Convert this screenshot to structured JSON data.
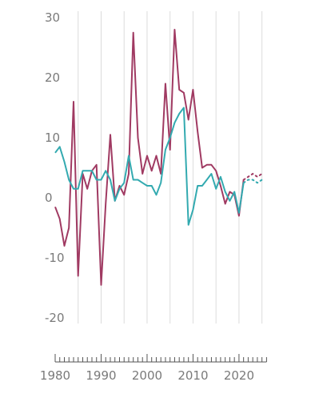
{
  "chart_data": {
    "type": "line",
    "title": "",
    "xlabel": "",
    "ylabel": "",
    "xlim": [
      1978,
      2027
    ],
    "ylim": [
      -20,
      30
    ],
    "y_ticks": [
      30,
      20,
      10,
      0,
      -10,
      -20
    ],
    "x_ticks": [
      1980,
      1990,
      2000,
      2010,
      2020
    ],
    "x_tick_labels": [
      "1980",
      "1990",
      "2000",
      "2010",
      "2020"
    ],
    "grid": "vertical",
    "legend": "none",
    "series": [
      {
        "color": "#a03a62",
        "dashed_from": 2021,
        "points": [
          [
            1980,
            -1.5
          ],
          [
            1981,
            -3.5
          ],
          [
            1982,
            -8
          ],
          [
            1983,
            -5
          ],
          [
            1984,
            16
          ],
          [
            1985,
            -13
          ],
          [
            1986,
            4
          ],
          [
            1987,
            1.5
          ],
          [
            1988,
            4.5
          ],
          [
            1989,
            5.5
          ],
          [
            1990,
            -14.5
          ],
          [
            1991,
            -1
          ],
          [
            1992,
            10.5
          ],
          [
            1993,
            -0.5
          ],
          [
            1994,
            2
          ],
          [
            1995,
            0.5
          ],
          [
            1996,
            4
          ],
          [
            1997,
            27.5
          ],
          [
            1998,
            10
          ],
          [
            1999,
            4
          ],
          [
            2000,
            7
          ],
          [
            2001,
            4.5
          ],
          [
            2002,
            7
          ],
          [
            2003,
            4
          ],
          [
            2004,
            19
          ],
          [
            2005,
            8
          ],
          [
            2006,
            28
          ],
          [
            2007,
            18
          ],
          [
            2008,
            17.5
          ],
          [
            2009,
            13
          ],
          [
            2010,
            18
          ],
          [
            2011,
            11
          ],
          [
            2012,
            5
          ],
          [
            2013,
            5.5
          ],
          [
            2014,
            5.5
          ],
          [
            2015,
            4.5
          ],
          [
            2016,
            2
          ],
          [
            2017,
            -1
          ],
          [
            2018,
            1
          ],
          [
            2019,
            0.5
          ],
          [
            2020,
            -3
          ],
          [
            2021,
            3
          ],
          [
            2022,
            3.5
          ],
          [
            2023,
            4
          ],
          [
            2024,
            3.5
          ],
          [
            2025,
            4
          ]
        ]
      },
      {
        "color": "#33aab0",
        "dashed_from": 2021,
        "points": [
          [
            1980,
            7.5
          ],
          [
            1981,
            8.5
          ],
          [
            1982,
            6
          ],
          [
            1983,
            3
          ],
          [
            1984,
            1.5
          ],
          [
            1985,
            1.5
          ],
          [
            1986,
            4.5
          ],
          [
            1987,
            4.5
          ],
          [
            1988,
            4.5
          ],
          [
            1989,
            3
          ],
          [
            1990,
            3
          ],
          [
            1991,
            4.5
          ],
          [
            1992,
            3
          ],
          [
            1993,
            -0.5
          ],
          [
            1994,
            1.5
          ],
          [
            1995,
            2.5
          ],
          [
            1996,
            7
          ],
          [
            1997,
            3
          ],
          [
            1998,
            3
          ],
          [
            1999,
            2.5
          ],
          [
            2000,
            2
          ],
          [
            2001,
            2
          ],
          [
            2002,
            0.5
          ],
          [
            2003,
            2.5
          ],
          [
            2004,
            8
          ],
          [
            2005,
            10
          ],
          [
            2006,
            12.5
          ],
          [
            2007,
            14
          ],
          [
            2008,
            15
          ],
          [
            2009,
            -4.5
          ],
          [
            2010,
            -2
          ],
          [
            2011,
            2
          ],
          [
            2012,
            2
          ],
          [
            2013,
            3
          ],
          [
            2014,
            4
          ],
          [
            2015,
            1.5
          ],
          [
            2016,
            3.5
          ],
          [
            2017,
            1
          ],
          [
            2018,
            -0.5
          ],
          [
            2019,
            1
          ],
          [
            2020,
            -2.5
          ],
          [
            2021,
            2.5
          ],
          [
            2022,
            3
          ],
          [
            2023,
            3
          ],
          [
            2024,
            2.5
          ],
          [
            2025,
            3
          ]
        ]
      }
    ]
  }
}
